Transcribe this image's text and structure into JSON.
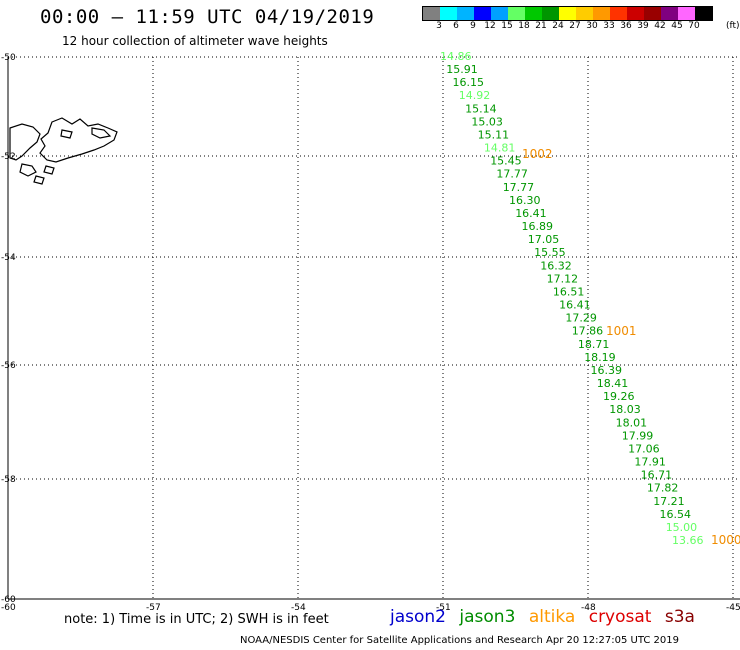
{
  "header": {
    "title": "00:00 – 11:59 UTC 04/19/2019",
    "subtitle": "12 hour collection of altimeter wave heights"
  },
  "colorbar": {
    "colors": [
      "#808080",
      "#00ffff",
      "#00b4ff",
      "#0000ff",
      "#00a0ff",
      "#64ff64",
      "#00c800",
      "#009600",
      "#ffff00",
      "#ffcc00",
      "#ff9900",
      "#ff3300",
      "#cc0000",
      "#990000",
      "#800080",
      "#ff66ff",
      "#000000"
    ],
    "labels": [
      "3",
      "6",
      "9",
      "12",
      "15",
      "18",
      "21",
      "24",
      "27",
      "30",
      "33",
      "36",
      "39",
      "42",
      "45",
      "70"
    ],
    "unit": "(ft)"
  },
  "axes": {
    "lat_labels": [
      "-50",
      "-52",
      "-54",
      "-56",
      "-58",
      "-60"
    ],
    "lon_labels": [
      "-60",
      "-57",
      "-54",
      "-51",
      "-48",
      "-45"
    ]
  },
  "track": {
    "swh_values": [
      "14.86",
      "15.91",
      "16.15",
      "14.92",
      "15.14",
      "15.03",
      "15.11",
      "14.81",
      "15.45",
      "17.77",
      "17.77",
      "16.30",
      "16.41",
      "16.89",
      "17.05",
      "15.55",
      "16.32",
      "17.12",
      "16.51",
      "16.41",
      "17.29",
      "17.86",
      "18.71",
      "18.19",
      "16.39",
      "18.41",
      "19.26",
      "18.03",
      "18.01",
      "17.99",
      "17.06",
      "17.91",
      "16.71",
      "17.82",
      "17.21",
      "16.54",
      "15.00",
      "13.66"
    ],
    "swh_colors": [
      "#64ff64",
      "#009600",
      "#009600",
      "#64ff64",
      "#009600",
      "#009600",
      "#009600",
      "#64ff64",
      "#009600",
      "#009600",
      "#009600",
      "#009600",
      "#009600",
      "#009600",
      "#009600",
      "#009600",
      "#009600",
      "#009600",
      "#009600",
      "#009600",
      "#009600",
      "#009600",
      "#009600",
      "#009600",
      "#009600",
      "#009600",
      "#009600",
      "#009600",
      "#009600",
      "#009600",
      "#009600",
      "#009600",
      "#009600",
      "#009600",
      "#009600",
      "#009600",
      "#64ff64",
      "#64ff64"
    ],
    "pressure_labels": [
      "1002",
      "1001",
      "1000"
    ]
  },
  "footer": {
    "note": "note: 1) Time is in UTC; 2) SWH is in feet",
    "satellites": [
      {
        "name": "jason2",
        "color": "#0000cc"
      },
      {
        "name": "jason3",
        "color": "#008c00"
      },
      {
        "name": "altika",
        "color": "#ff9900"
      },
      {
        "name": "cryosat",
        "color": "#dd0000"
      },
      {
        "name": "s3a",
        "color": "#880000"
      }
    ],
    "credit": "NOAA/NESDIS Center for Satellite Applications and Research   Apr 20 12:27:05 UTC 2019"
  }
}
